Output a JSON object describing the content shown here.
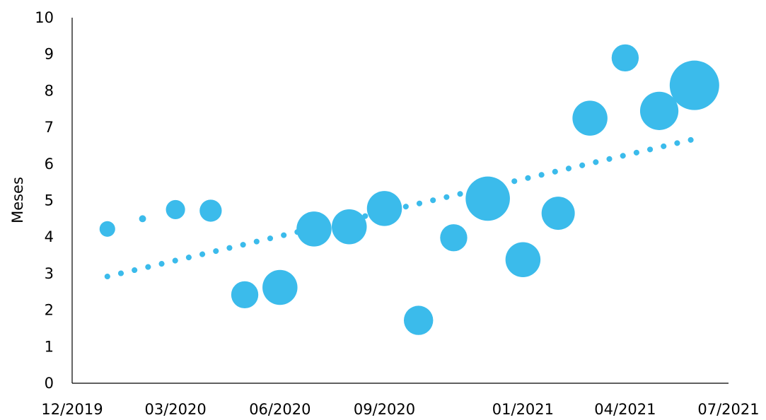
{
  "chart_data": {
    "type": "bubble",
    "ylabel": "Meses",
    "xlabel": "",
    "title": "",
    "ylim": [
      0,
      10
    ],
    "y_ticks": [
      "0",
      "1",
      "2",
      "3",
      "4",
      "5",
      "6",
      "7",
      "8",
      "9",
      "10"
    ],
    "xlim": [
      "2019-12-01",
      "2021-07-01"
    ],
    "x_ticks": [
      {
        "date": "2019-12-01",
        "label": "12/2019"
      },
      {
        "date": "2020-03-01",
        "label": "03/2020"
      },
      {
        "date": "2020-06-01",
        "label": "06/2020"
      },
      {
        "date": "2020-09-01",
        "label": "09/2020"
      },
      {
        "date": "2021-01-01",
        "label": "01/2021"
      },
      {
        "date": "2021-04-01",
        "label": "04/2021"
      },
      {
        "date": "2021-07-01",
        "label": "07/2021"
      }
    ],
    "grid": false,
    "legend": "none",
    "color": "#3bbbeb",
    "points": [
      {
        "date": "2020-01-01",
        "y": 4.22,
        "size": 1
      },
      {
        "date": "2020-02-01",
        "y": 4.5,
        "size": 0.2
      },
      {
        "date": "2020-03-01",
        "y": 4.75,
        "size": 1.5
      },
      {
        "date": "2020-04-01",
        "y": 4.72,
        "size": 2
      },
      {
        "date": "2020-05-01",
        "y": 2.42,
        "size": 3
      },
      {
        "date": "2020-06-01",
        "y": 2.62,
        "size": 5
      },
      {
        "date": "2020-07-01",
        "y": 4.22,
        "size": 5
      },
      {
        "date": "2020-08-01",
        "y": 4.28,
        "size": 5
      },
      {
        "date": "2020-09-01",
        "y": 4.78,
        "size": 5
      },
      {
        "date": "2020-10-01",
        "y": 1.72,
        "size": 3.5
      },
      {
        "date": "2020-11-01",
        "y": 3.98,
        "size": 3
      },
      {
        "date": "2020-12-01",
        "y": 5.05,
        "size": 8
      },
      {
        "date": "2021-01-01",
        "y": 3.38,
        "size": 5
      },
      {
        "date": "2021-02-01",
        "y": 4.65,
        "size": 4.5
      },
      {
        "date": "2021-03-01",
        "y": 7.25,
        "size": 5
      },
      {
        "date": "2021-04-01",
        "y": 8.9,
        "size": 3
      },
      {
        "date": "2021-05-01",
        "y": 7.45,
        "size": 6
      },
      {
        "date": "2021-06-01",
        "y": 8.15,
        "size": 10
      }
    ],
    "trendline": {
      "type": "linear",
      "style": "dotted",
      "start": {
        "date": "2020-01-01",
        "y": 2.92
      },
      "end": {
        "date": "2021-06-01",
        "y": 6.68
      }
    }
  }
}
